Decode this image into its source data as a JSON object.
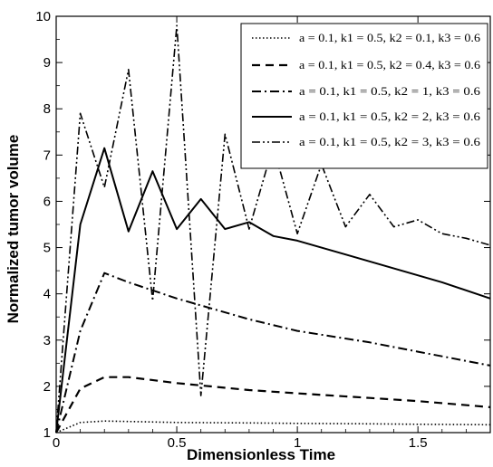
{
  "chart_data": {
    "type": "line",
    "title": "",
    "xlabel": "Dimensionless Time",
    "ylabel": "Normalized tumor volume",
    "xlim": [
      0,
      1.8
    ],
    "ylim": [
      1,
      10
    ],
    "xticks": [
      0,
      0.5,
      1,
      1.5
    ],
    "xtick_labels": [
      "0",
      "0.5",
      "1",
      "1.5"
    ],
    "yticks": [
      1,
      2,
      3,
      4,
      5,
      6,
      7,
      8,
      9,
      10
    ],
    "ytick_labels": [
      "1",
      "2",
      "3",
      "4",
      "5",
      "6",
      "7",
      "8",
      "9",
      "10"
    ],
    "legend_position": "top-right",
    "series": [
      {
        "name": "a = 0.1, k1 = 0.5, k2 = 0.1, k3 = 0.6",
        "style": "dotted",
        "x": [
          0,
          0.1,
          0.2,
          0.3,
          0.5,
          0.8,
          1.0,
          1.3,
          1.5,
          1.8
        ],
        "y": [
          1.0,
          1.22,
          1.25,
          1.24,
          1.22,
          1.21,
          1.2,
          1.19,
          1.18,
          1.17
        ]
      },
      {
        "name": "a = 0.1, k1 = 0.5, k2 = 0.4, k3 = 0.6",
        "style": "dashed",
        "x": [
          0,
          0.1,
          0.2,
          0.3,
          0.5,
          0.8,
          1.0,
          1.3,
          1.5,
          1.8
        ],
        "y": [
          1.0,
          1.95,
          2.2,
          2.2,
          2.07,
          1.92,
          1.85,
          1.75,
          1.68,
          1.55
        ]
      },
      {
        "name": "a = 0.1, k1 = 0.5, k2 = 1, k3 = 0.6",
        "style": "dash-dot",
        "x": [
          0,
          0.1,
          0.2,
          0.3,
          0.5,
          0.8,
          1.0,
          1.3,
          1.5,
          1.8
        ],
        "y": [
          1.0,
          3.2,
          4.45,
          4.25,
          3.9,
          3.45,
          3.2,
          2.95,
          2.75,
          2.45
        ]
      },
      {
        "name": "a = 0.1, k1 = 0.5, k2 = 2, k3 = 0.6",
        "style": "solid",
        "x": [
          0,
          0.1,
          0.2,
          0.3,
          0.4,
          0.5,
          0.6,
          0.7,
          0.8,
          0.9,
          1.0,
          1.2,
          1.4,
          1.6,
          1.8
        ],
        "y": [
          1.0,
          5.5,
          7.15,
          5.35,
          6.65,
          5.4,
          6.05,
          5.4,
          5.55,
          5.25,
          5.15,
          4.85,
          4.55,
          4.25,
          3.9
        ]
      },
      {
        "name": "a = 0.1, k1 = 0.5, k2 = 3, k3 = 0.6",
        "style": "dash-dot-dot",
        "x": [
          0,
          0.1,
          0.2,
          0.3,
          0.4,
          0.5,
          0.6,
          0.7,
          0.8,
          0.9,
          1.0,
          1.1,
          1.2,
          1.3,
          1.4,
          1.5,
          1.6,
          1.7,
          1.8
        ],
        "y": [
          1.0,
          7.9,
          6.3,
          8.85,
          3.85,
          9.8,
          1.8,
          7.45,
          5.4,
          7.2,
          5.3,
          6.8,
          5.45,
          6.15,
          5.45,
          5.6,
          5.3,
          5.2,
          5.05
        ]
      }
    ]
  }
}
